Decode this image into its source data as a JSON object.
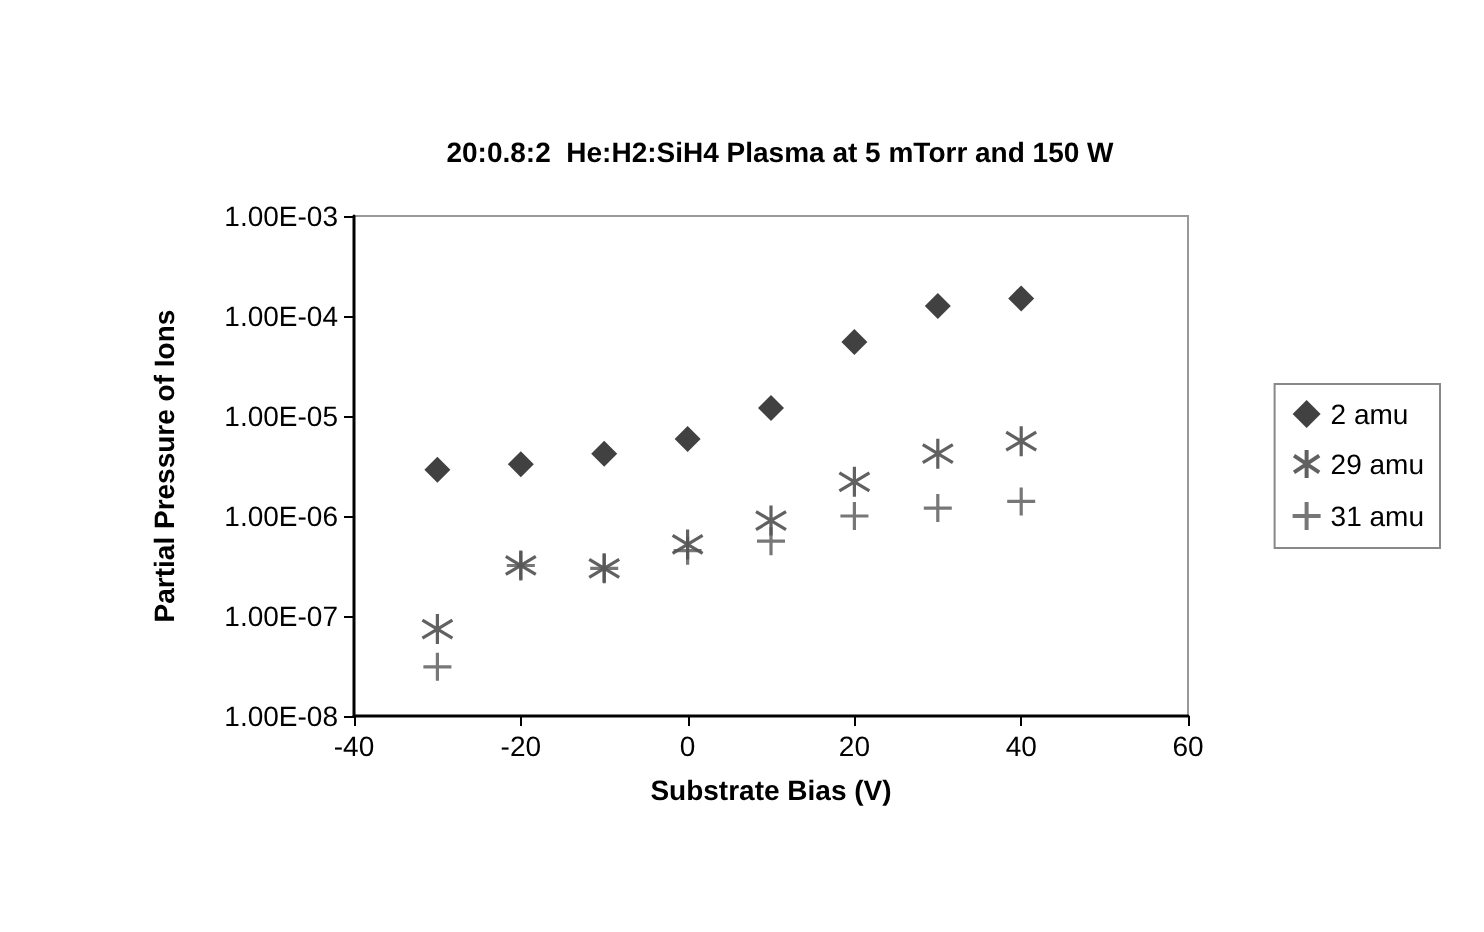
{
  "chart_data": {
    "type": "scatter",
    "title": "20:0.8:2  He:H2:SiH4 Plasma at 5 mTorr and 150 W",
    "xlabel": "Substrate Bias (V)",
    "ylabel": "Partial Pressure of Ions",
    "x": [
      -30,
      -20,
      -10,
      0,
      10,
      20,
      30,
      40
    ],
    "series": [
      {
        "name": "2 amu",
        "color": "#111111",
        "marker": "diamond",
        "values": [
          2.9e-06,
          3.3e-06,
          4.2e-06,
          5.9e-06,
          1.2e-05,
          5.5e-05,
          0.000126,
          0.00015
        ]
      },
      {
        "name": "29 amu",
        "color": "#3a3a3a",
        "values": [
          7.4e-08,
          3.2e-07,
          3e-07,
          5.2e-07,
          9e-07,
          2.2e-06,
          4.2e-06,
          5.6e-06
        ]
      },
      {
        "name": "31 amu",
        "color": "#555555",
        "marker": "cross",
        "values": [
          3.1e-08,
          3.2e-07,
          3e-07,
          4.5e-07,
          5.6e-07,
          1e-06,
          1.2e-06,
          1.4e-06
        ]
      }
    ],
    "xlim": [
      -40,
      60
    ],
    "xticks": [
      -40,
      -20,
      0,
      20,
      40,
      60
    ],
    "log": "y",
    "ylim": [
      1e-08,
      0.001
    ],
    "yticks": [
      {
        "value": 1e-08,
        "label": "1.00E-08"
      },
      {
        "value": 1e-07,
        "label": "1.00E-07"
      },
      {
        "value": 1e-06,
        "label": "1.00E-06"
      },
      {
        "value": 1e-05,
        "label": "1.00E-05"
      },
      {
        "value": 0.0001,
        "label": "1.00E-04"
      },
      {
        "value": 0.001,
        "label": "1.00E-03"
      }
    ],
    "grid": false,
    "legend": "right"
  }
}
